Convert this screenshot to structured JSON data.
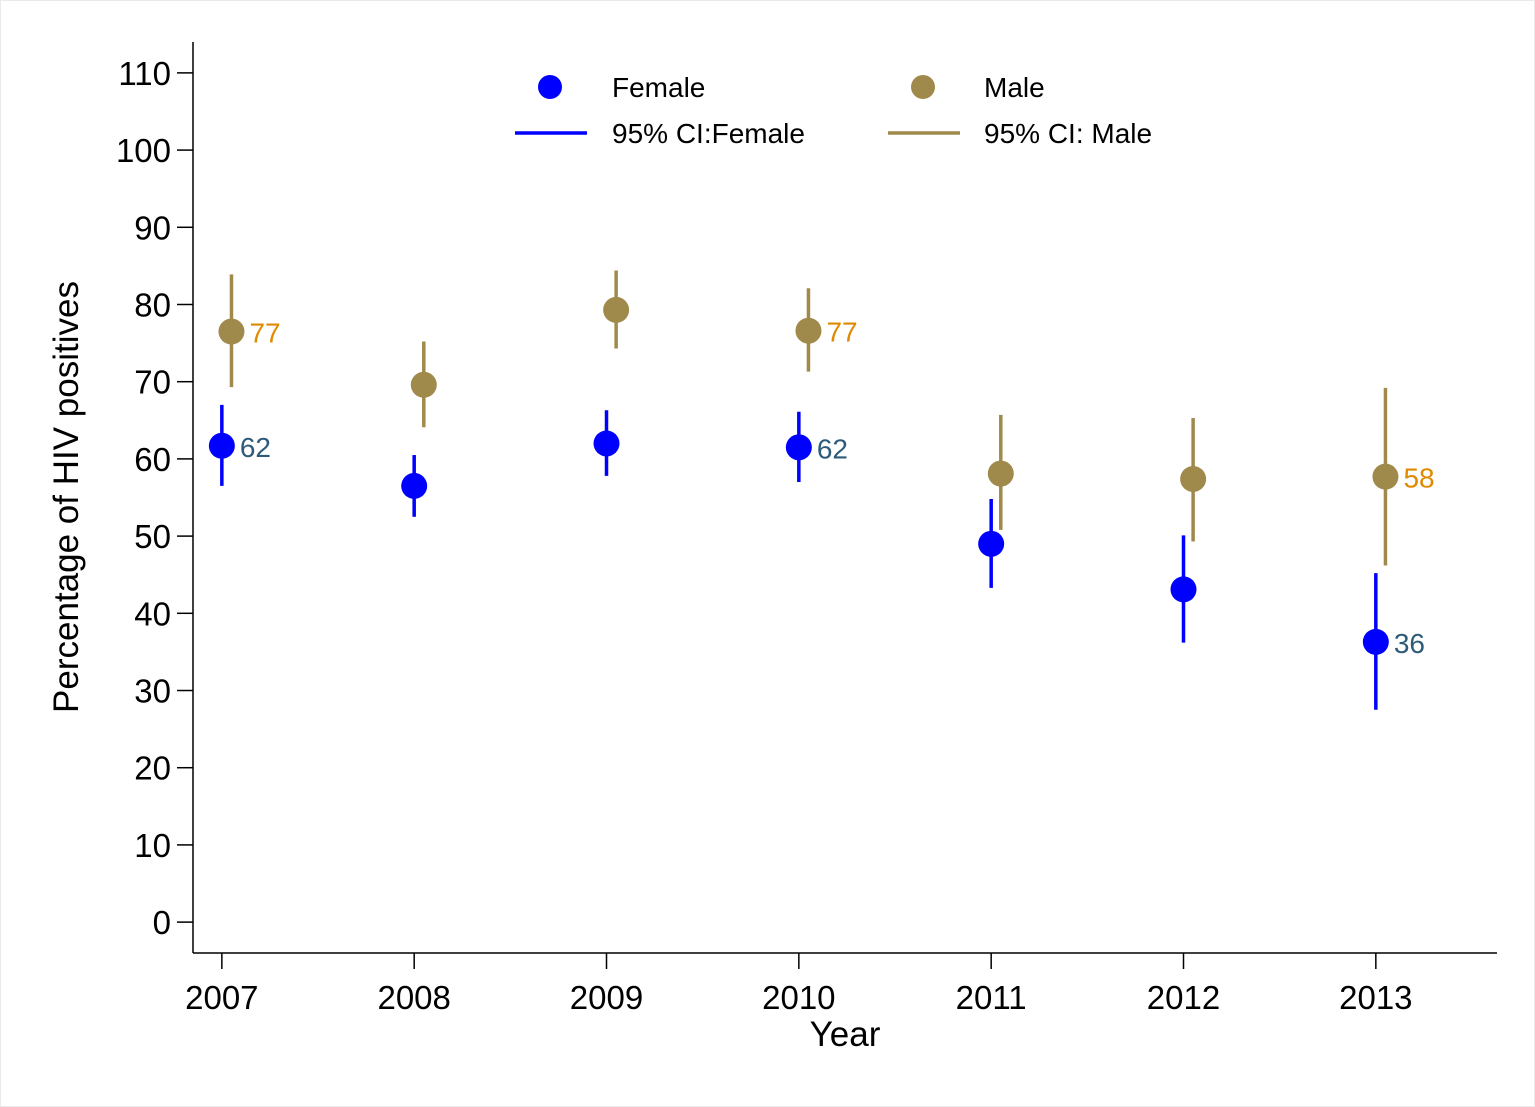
{
  "chart_data": {
    "type": "scatter",
    "title": "",
    "xlabel": "Year",
    "ylabel": "Percentage of HIV positives",
    "x": [
      2007,
      2008,
      2009,
      2010,
      2011,
      2012,
      2013
    ],
    "x_ticks": [
      "2007",
      "2008",
      "2009",
      "2010",
      "2011",
      "2012",
      "2013"
    ],
    "xlim": [
      2006.85,
      2013.63
    ],
    "ylim": [
      -4,
      114
    ],
    "y_ticks": [
      0,
      10,
      20,
      30,
      40,
      50,
      60,
      70,
      80,
      90,
      100,
      110
    ],
    "y_tick_labels": [
      "0",
      "10",
      "20",
      "30",
      "40",
      "50",
      "60",
      "70",
      "80",
      "90",
      "100",
      "110"
    ],
    "grid": false,
    "legend_position": "top",
    "legend": [
      {
        "label": "Female",
        "kind": "marker",
        "color": "#0000ff"
      },
      {
        "label": "Male",
        "kind": "marker",
        "color": "#a08a4b"
      },
      {
        "label": "95% CI:Female",
        "kind": "line",
        "color": "#0000ff"
      },
      {
        "label": "95% CI: Male",
        "kind": "line",
        "color": "#a08a4b"
      }
    ],
    "series": [
      {
        "name": "Female",
        "color": "#0000ff",
        "label_color": "#2e5b7a",
        "values": [
          61.7,
          56.5,
          62.0,
          61.5,
          49.0,
          43.1,
          36.3
        ],
        "ci_low": [
          56.5,
          52.5,
          57.8,
          57.0,
          43.3,
          36.2,
          27.5
        ],
        "ci_high": [
          67.0,
          60.5,
          66.3,
          66.1,
          54.8,
          50.1,
          45.2
        ],
        "data_labels": [
          "62",
          "",
          "",
          "62",
          "",
          "",
          "36"
        ]
      },
      {
        "name": "Male",
        "color": "#a08a4b",
        "label_color": "#e08a00",
        "values": [
          76.5,
          69.6,
          79.3,
          76.6,
          58.1,
          57.4,
          57.7
        ],
        "ci_low": [
          69.3,
          64.1,
          74.3,
          71.3,
          50.8,
          49.3,
          46.2
        ],
        "ci_high": [
          83.9,
          75.2,
          84.4,
          82.1,
          65.7,
          65.3,
          69.2
        ],
        "data_labels": [
          "77",
          "",
          "",
          "77",
          "",
          "",
          "58"
        ]
      }
    ]
  }
}
